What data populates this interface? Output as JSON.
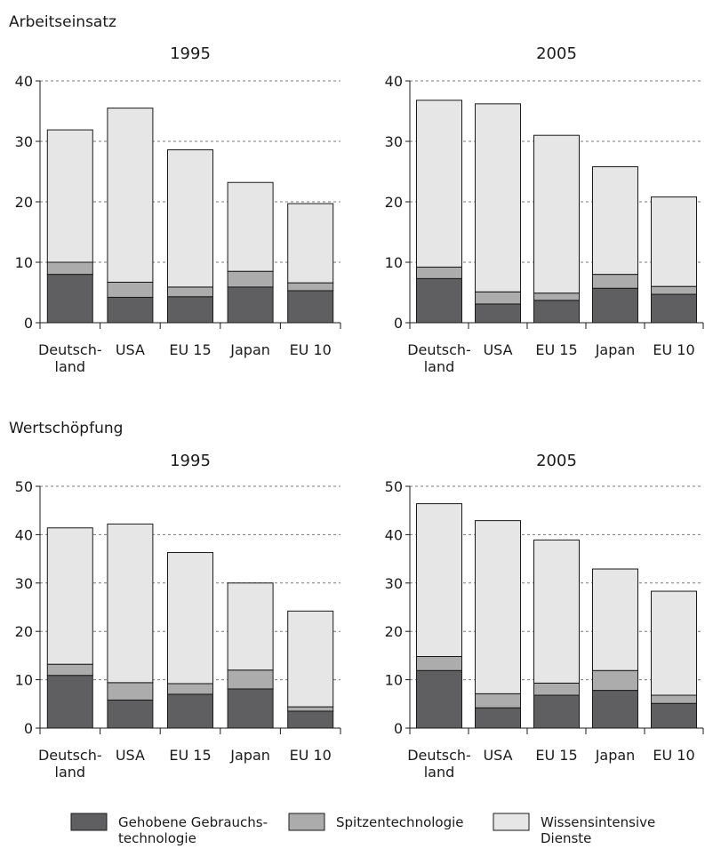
{
  "sections": [
    {
      "title": "Arbeitseinsatz",
      "charts": [
        0,
        1
      ]
    },
    {
      "title": "Wertschöpfung",
      "charts": [
        2,
        3
      ]
    }
  ],
  "colors": {
    "gebrauchs": "#5f5f62",
    "spitzen": "#acacac",
    "wissens": "#e6e6e6",
    "outline": "#1a1a1a",
    "grid": "#7a7a7a"
  },
  "legend": [
    {
      "key": "gebrauchs",
      "lines": [
        "Gehobene Gebrauchs-",
        "technologie"
      ]
    },
    {
      "key": "spitzen",
      "lines": [
        "Spitzentechnologie"
      ]
    },
    {
      "key": "wissens",
      "lines": [
        "Wissensintensive",
        "Dienste"
      ]
    }
  ],
  "chart_data": [
    {
      "type": "bar",
      "stacked": true,
      "title": "1995",
      "categories": [
        "Deutsch- land",
        "USA",
        "EU 15",
        "Japan",
        "EU 10"
      ],
      "category_lines": [
        [
          "Deutsch-",
          "land"
        ],
        [
          "USA"
        ],
        [
          "EU 15"
        ],
        [
          "Japan"
        ],
        [
          "EU 10"
        ]
      ],
      "ylim": [
        0,
        40
      ],
      "yticks": [
        0,
        10,
        20,
        30,
        40
      ],
      "grid": true,
      "series": [
        {
          "name": "Gehobene Gebrauchstechnologie",
          "key": "gebrauchs",
          "values": [
            8.0,
            4.2,
            4.3,
            5.9,
            5.3
          ]
        },
        {
          "name": "Spitzentechnologie",
          "key": "spitzen",
          "values": [
            2.0,
            2.5,
            1.6,
            2.6,
            1.3
          ]
        },
        {
          "name": "Wissensintensive Dienste",
          "key": "wissens",
          "values": [
            21.9,
            28.8,
            22.7,
            14.7,
            13.1
          ]
        }
      ]
    },
    {
      "type": "bar",
      "stacked": true,
      "title": "2005",
      "categories": [
        "Deutsch- land",
        "USA",
        "EU 15",
        "Japan",
        "EU 10"
      ],
      "category_lines": [
        [
          "Deutsch-",
          "land"
        ],
        [
          "USA"
        ],
        [
          "EU 15"
        ],
        [
          "Japan"
        ],
        [
          "EU 10"
        ]
      ],
      "ylim": [
        0,
        40
      ],
      "yticks": [
        0,
        10,
        20,
        30,
        40
      ],
      "grid": true,
      "series": [
        {
          "name": "Gehobene Gebrauchstechnologie",
          "key": "gebrauchs",
          "values": [
            7.3,
            3.1,
            3.7,
            5.7,
            4.7
          ]
        },
        {
          "name": "Spitzentechnologie",
          "key": "spitzen",
          "values": [
            1.9,
            2.0,
            1.2,
            2.3,
            1.3
          ]
        },
        {
          "name": "Wissensintensive Dienste",
          "key": "wissens",
          "values": [
            27.6,
            31.1,
            26.1,
            17.8,
            14.8
          ]
        }
      ]
    },
    {
      "type": "bar",
      "stacked": true,
      "title": "1995",
      "categories": [
        "Deutsch- land",
        "USA",
        "EU 15",
        "Japan",
        "EU 10"
      ],
      "category_lines": [
        [
          "Deutsch-",
          "land"
        ],
        [
          "USA"
        ],
        [
          "EU 15"
        ],
        [
          "Japan"
        ],
        [
          "EU 10"
        ]
      ],
      "ylim": [
        0,
        50
      ],
      "yticks": [
        0,
        10,
        20,
        30,
        40,
        50
      ],
      "grid": true,
      "series": [
        {
          "name": "Gehobene Gebrauchstechnologie",
          "key": "gebrauchs",
          "values": [
            10.9,
            5.8,
            7.0,
            8.1,
            3.5
          ]
        },
        {
          "name": "Spitzentechnologie",
          "key": "spitzen",
          "values": [
            2.3,
            3.6,
            2.2,
            3.9,
            0.9
          ]
        },
        {
          "name": "Wissensintensive Dienste",
          "key": "wissens",
          "values": [
            28.2,
            32.8,
            27.1,
            18.0,
            19.8
          ]
        }
      ]
    },
    {
      "type": "bar",
      "stacked": true,
      "title": "2005",
      "categories": [
        "Deutsch- land",
        "USA",
        "EU 15",
        "Japan",
        "EU 10"
      ],
      "category_lines": [
        [
          "Deutsch-",
          "land"
        ],
        [
          "USA"
        ],
        [
          "EU 15"
        ],
        [
          "Japan"
        ],
        [
          "EU 10"
        ]
      ],
      "ylim": [
        0,
        50
      ],
      "yticks": [
        0,
        10,
        20,
        30,
        40,
        50
      ],
      "grid": true,
      "series": [
        {
          "name": "Gehobene Gebrauchstechnologie",
          "key": "gebrauchs",
          "values": [
            11.9,
            4.2,
            6.8,
            7.8,
            5.1
          ]
        },
        {
          "name": "Spitzentechnologie",
          "key": "spitzen",
          "values": [
            2.9,
            2.9,
            2.5,
            4.1,
            1.7
          ]
        },
        {
          "name": "Wissensintensive Dienste",
          "key": "wissens",
          "values": [
            31.6,
            35.8,
            29.6,
            21.0,
            21.5
          ]
        }
      ]
    }
  ]
}
